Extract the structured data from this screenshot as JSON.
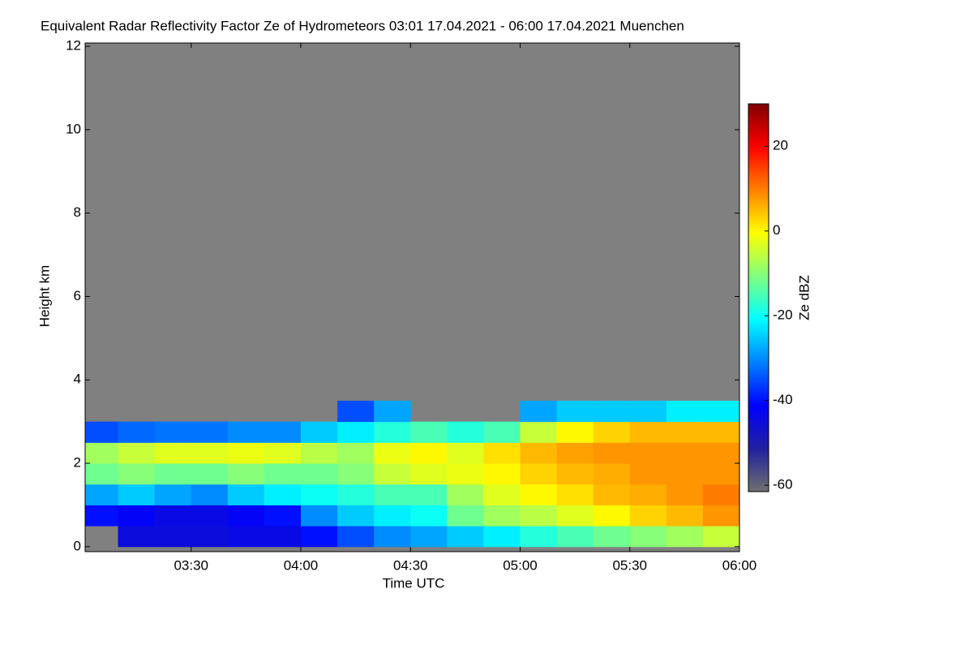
{
  "chart_data": {
    "type": "heatmap",
    "title": "Equivalent Radar Reflectivity Factor Ze of Hydrometeors   03:01 17.04.2021 - 06:00 17.04.2021 Muenchen",
    "x_label": "Time UTC",
    "y_label": "Height km",
    "colorbar_label": "Ze dBZ",
    "background": "#808080",
    "xlim": [
      181,
      360
    ],
    "xticks": [
      {
        "value": 210,
        "label": "03:30"
      },
      {
        "value": 240,
        "label": "04:00"
      },
      {
        "value": 270,
        "label": "04:30"
      },
      {
        "value": 300,
        "label": "05:00"
      },
      {
        "value": 330,
        "label": "05:30"
      },
      {
        "value": 360,
        "label": "06:00"
      }
    ],
    "ylim": [
      -0.12,
      12.08
    ],
    "yticks": [
      0,
      2,
      4,
      6,
      8,
      10,
      12
    ],
    "clim": [
      -61.5,
      30
    ],
    "cticks": [
      20,
      0,
      -20,
      -40,
      -60
    ],
    "colormap": [
      "#707070",
      "#2020a0",
      "#0000ff",
      "#0080ff",
      "#00ffff",
      "#80ff80",
      "#ffff00",
      "#ff8000",
      "#ff0000",
      "#800000"
    ],
    "time_edges": [
      180,
      190,
      200,
      210,
      220,
      230,
      240,
      250,
      260,
      270,
      280,
      290,
      300,
      310,
      320,
      330,
      340,
      350,
      360
    ],
    "height_edges": [
      0,
      0.5,
      1,
      1.5,
      2,
      2.5,
      3,
      3.5
    ],
    "z": [
      [
        null,
        -40,
        -28,
        -12,
        -8,
        -35,
        null
      ],
      [
        -45,
        -42,
        -25,
        -10,
        -5,
        -33,
        null
      ],
      [
        -45,
        -44,
        -28,
        -12,
        -3,
        -32,
        null
      ],
      [
        -45,
        -44,
        -30,
        -12,
        -3,
        -32,
        null
      ],
      [
        -44,
        -42,
        -25,
        -10,
        -2,
        -30,
        null
      ],
      [
        -44,
        -40,
        -22,
        -12,
        -3,
        -30,
        null
      ],
      [
        -40,
        -30,
        -20,
        -12,
        -6,
        -25,
        null
      ],
      [
        -35,
        -25,
        -18,
        -10,
        -8,
        -22,
        -35
      ],
      [
        -30,
        -22,
        -15,
        -5,
        -2,
        -18,
        -28
      ],
      [
        -28,
        -20,
        -15,
        -3,
        0,
        -15,
        null
      ],
      [
        -25,
        -12,
        -8,
        -2,
        -3,
        -18,
        null
      ],
      [
        -22,
        -8,
        -3,
        0,
        2,
        -15,
        null
      ],
      [
        -18,
        -6,
        0,
        3,
        5,
        -5,
        -28
      ],
      [
        -15,
        -3,
        2,
        5,
        7,
        0,
        -25
      ],
      [
        -12,
        0,
        5,
        6,
        8,
        3,
        -25
      ],
      [
        -10,
        3,
        6,
        8,
        8,
        5,
        -25
      ],
      [
        -8,
        5,
        8,
        8,
        8,
        5,
        -22
      ],
      [
        -5,
        8,
        10,
        8,
        8,
        5,
        -22
      ]
    ]
  }
}
